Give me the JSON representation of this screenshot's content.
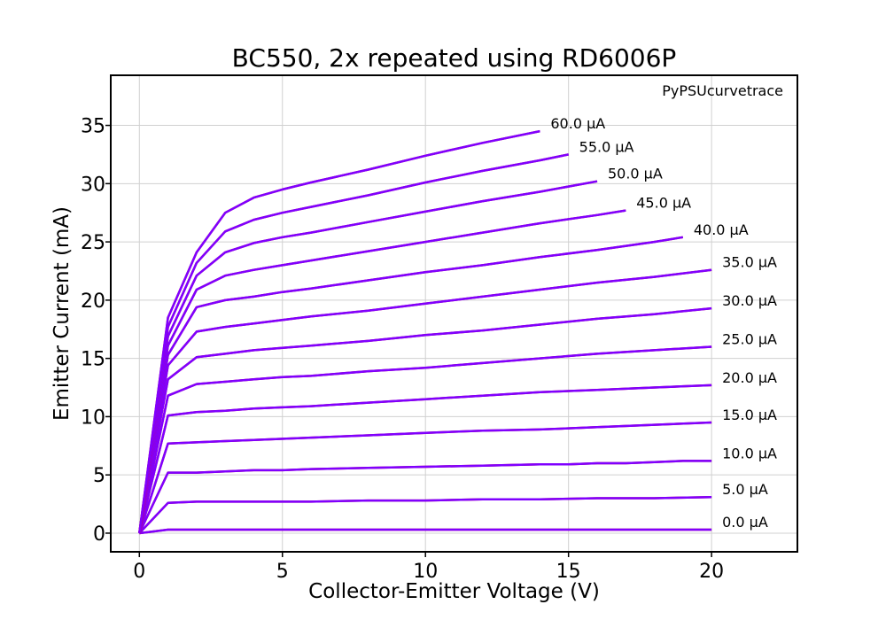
{
  "chart_data": {
    "type": "line",
    "title": "BC550, 2x repeated using RD6006P",
    "xlabel": "Collector-Emitter Voltage (V)",
    "ylabel": "Emitter Current (mA)",
    "watermark": "PyPSUcurvetrace",
    "xlim": [
      -1,
      23
    ],
    "ylim": [
      -1.6,
      39.3
    ],
    "xticks": [
      0,
      5,
      10,
      15,
      20
    ],
    "yticks": [
      0,
      5,
      10,
      15,
      20,
      25,
      30,
      35
    ],
    "grid": true,
    "colors": {
      "run1": "#d4003c",
      "run2": "#7f00ff"
    },
    "series": [
      {
        "name": "0.0 µA",
        "x": [
          0,
          1,
          2,
          4,
          6,
          8,
          10,
          12,
          14,
          16,
          18,
          20
        ],
        "y": [
          0,
          0.3,
          0.3,
          0.3,
          0.3,
          0.3,
          0.3,
          0.3,
          0.3,
          0.3,
          0.3,
          0.3
        ]
      },
      {
        "name": "5.0 µA",
        "x": [
          0,
          1,
          2,
          4,
          6,
          8,
          10,
          12,
          14,
          16,
          18,
          20
        ],
        "y": [
          0,
          2.6,
          2.7,
          2.7,
          2.7,
          2.8,
          2.8,
          2.9,
          2.9,
          3.0,
          3.0,
          3.1
        ]
      },
      {
        "name": "10.0 µA",
        "x": [
          0,
          1,
          2,
          3,
          4,
          5,
          6,
          8,
          10,
          12,
          14,
          15,
          16,
          17,
          18,
          19,
          20
        ],
        "y": [
          0,
          5.2,
          5.2,
          5.3,
          5.4,
          5.4,
          5.5,
          5.6,
          5.7,
          5.8,
          5.9,
          5.9,
          6.0,
          6.0,
          6.1,
          6.2,
          6.2
        ]
      },
      {
        "name": "15.0 µA",
        "x": [
          0,
          1,
          2,
          3,
          4,
          6,
          8,
          10,
          12,
          14,
          16,
          18,
          20
        ],
        "y": [
          0,
          7.7,
          7.8,
          7.9,
          8.0,
          8.2,
          8.4,
          8.6,
          8.8,
          8.9,
          9.1,
          9.3,
          9.5
        ]
      },
      {
        "name": "20.0 µA",
        "x": [
          0,
          1,
          2,
          3,
          4,
          5,
          6,
          8,
          10,
          12,
          14,
          16,
          18,
          20
        ],
        "y": [
          0,
          10.1,
          10.4,
          10.5,
          10.7,
          10.8,
          10.9,
          11.2,
          11.5,
          11.8,
          12.1,
          12.3,
          12.5,
          12.7
        ]
      },
      {
        "name": "25.0 µA",
        "x": [
          0,
          1,
          2,
          3,
          4,
          5,
          6,
          8,
          10,
          12,
          14,
          16,
          18,
          20
        ],
        "y": [
          0,
          11.8,
          12.8,
          13.0,
          13.2,
          13.4,
          13.5,
          13.9,
          14.2,
          14.6,
          15.0,
          15.4,
          15.7,
          16.0
        ]
      },
      {
        "name": "30.0 µA",
        "x": [
          0,
          1,
          2,
          3,
          4,
          5,
          6,
          8,
          10,
          12,
          14,
          16,
          18,
          20
        ],
        "y": [
          0,
          13.2,
          15.1,
          15.4,
          15.7,
          15.9,
          16.1,
          16.5,
          17.0,
          17.4,
          17.9,
          18.4,
          18.8,
          19.3
        ]
      },
      {
        "name": "35.0 µA",
        "x": [
          0,
          1,
          2,
          3,
          4,
          5,
          6,
          8,
          10,
          12,
          14,
          16,
          18,
          20
        ],
        "y": [
          0,
          14.4,
          17.3,
          17.7,
          18.0,
          18.3,
          18.6,
          19.1,
          19.7,
          20.3,
          20.9,
          21.5,
          22.0,
          22.6
        ]
      },
      {
        "name": "40.0 µA",
        "x": [
          0,
          1,
          2,
          3,
          4,
          5,
          6,
          8,
          10,
          12,
          14,
          16,
          18,
          19
        ],
        "y": [
          0,
          15.3,
          19.4,
          20.0,
          20.3,
          20.7,
          21.0,
          21.7,
          22.4,
          23.0,
          23.7,
          24.3,
          25.0,
          25.4
        ]
      },
      {
        "name": "45.0 µA",
        "x": [
          0,
          1,
          2,
          3,
          4,
          5,
          6,
          8,
          10,
          12,
          14,
          16,
          17
        ],
        "y": [
          0,
          16.1,
          20.9,
          22.1,
          22.6,
          23.0,
          23.4,
          24.2,
          25.0,
          25.8,
          26.6,
          27.3,
          27.7
        ]
      },
      {
        "name": "50.0 µA",
        "x": [
          0,
          1,
          2,
          3,
          4,
          5,
          6,
          8,
          10,
          12,
          14,
          16
        ],
        "y": [
          0,
          16.9,
          22.1,
          24.1,
          24.9,
          25.4,
          25.8,
          26.7,
          27.6,
          28.5,
          29.3,
          30.2
        ]
      },
      {
        "name": "55.0 µA",
        "x": [
          0,
          1,
          2,
          3,
          4,
          5,
          6,
          8,
          10,
          12,
          14,
          15
        ],
        "y": [
          0,
          17.7,
          23.2,
          25.9,
          26.9,
          27.5,
          28.0,
          29.0,
          30.1,
          31.1,
          32.0,
          32.5
        ]
      },
      {
        "name": "60.0 µA",
        "x": [
          0,
          1,
          2,
          3,
          4,
          5,
          6,
          8,
          10,
          12,
          14
        ],
        "y": [
          0,
          18.5,
          24.1,
          27.5,
          28.8,
          29.5,
          30.1,
          31.2,
          32.4,
          33.5,
          34.5
        ]
      }
    ]
  }
}
